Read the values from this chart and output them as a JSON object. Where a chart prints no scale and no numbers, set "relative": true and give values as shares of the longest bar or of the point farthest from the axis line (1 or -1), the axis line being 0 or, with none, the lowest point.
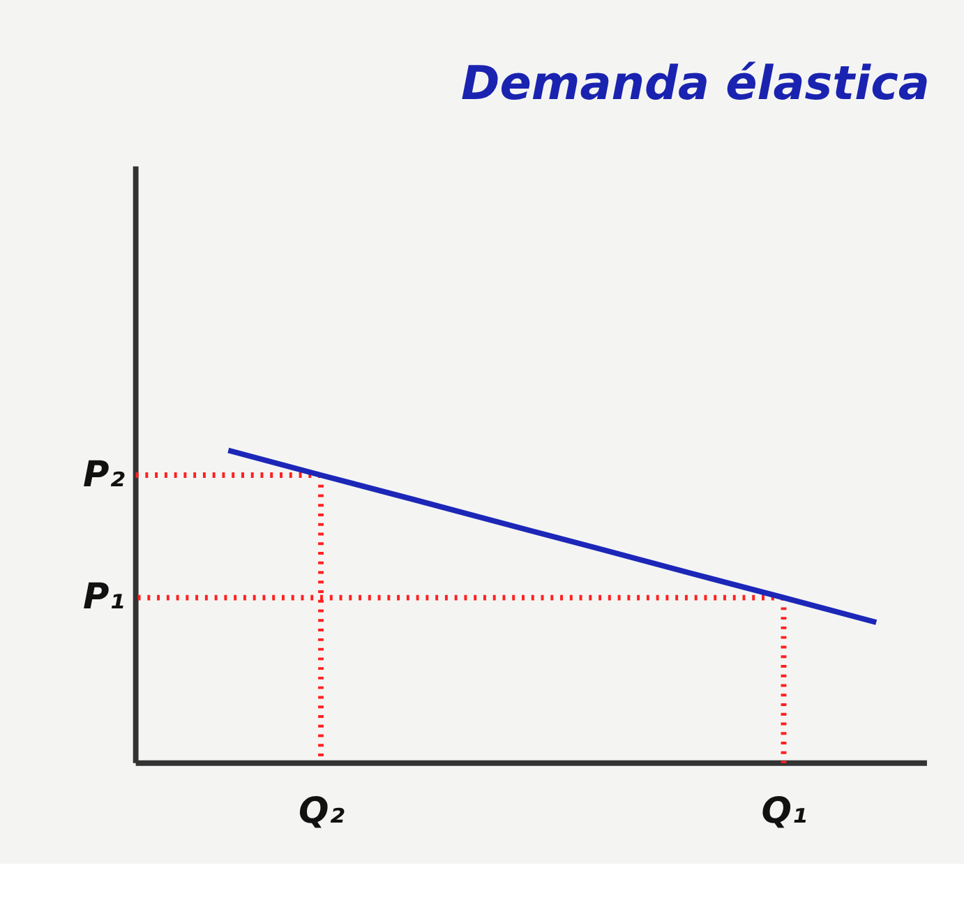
{
  "chart_data": {
    "type": "line",
    "title": "Demanda élastica",
    "relative": true,
    "marker": "none",
    "categories": [
      null,
      null,
      "Q₂",
      null,
      null,
      null,
      null,
      "Q₁",
      null
    ],
    "annotations": [
      "P₂",
      "P₁"
    ],
    "series": [
      {
        "color": "#ff2020",
        "values": [
          0.921,
          0.921,
          0.921,
          null,
          null,
          null,
          null,
          null,
          null
        ],
        "line_style": "dotted"
      },
      {
        "color": "#ff2020",
        "values": [
          0.529,
          0.529,
          0.529,
          0.529,
          0.529,
          0.529,
          0.529,
          0.529,
          null
        ],
        "line_style": "dotted"
      },
      {
        "color": "#ff2020",
        "x": [
          "Q₂",
          "Q₂"
        ],
        "values": [
          0.921,
          0
        ],
        "line_style": "dotted"
      },
      {
        "color": "#ff2020",
        "x": [
          "Q₁",
          "Q₁"
        ],
        "values": [
          0.529,
          0
        ],
        "line_style": "dotted"
      },
      {
        "color": "#1c27b8",
        "values": [
          null,
          1.0,
          0.921,
          0.843,
          0.764,
          0.686,
          0.607,
          0.529,
          0.45
        ],
        "line_style": "solid"
      }
    ]
  }
}
